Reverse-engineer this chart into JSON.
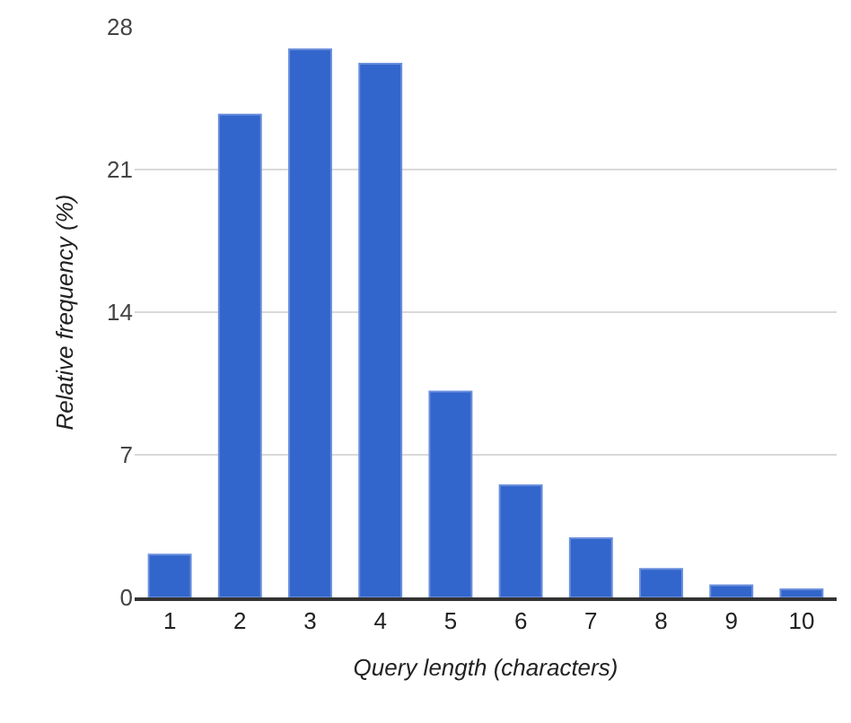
{
  "chart_data": {
    "type": "bar",
    "xlabel": "Query length (characters)",
    "ylabel": "Relative frequency (%)",
    "categories": [
      "1",
      "2",
      "3",
      "4",
      "5",
      "6",
      "7",
      "8",
      "9",
      "10"
    ],
    "values": [
      2.1,
      23.7,
      26.9,
      26.2,
      10.1,
      5.5,
      2.9,
      1.4,
      0.6,
      0.4
    ],
    "color": "#3366cc",
    "ylim": [
      0,
      28
    ],
    "yticks": [
      0,
      7,
      14,
      21,
      28
    ],
    "grid": "y",
    "legend": false
  }
}
